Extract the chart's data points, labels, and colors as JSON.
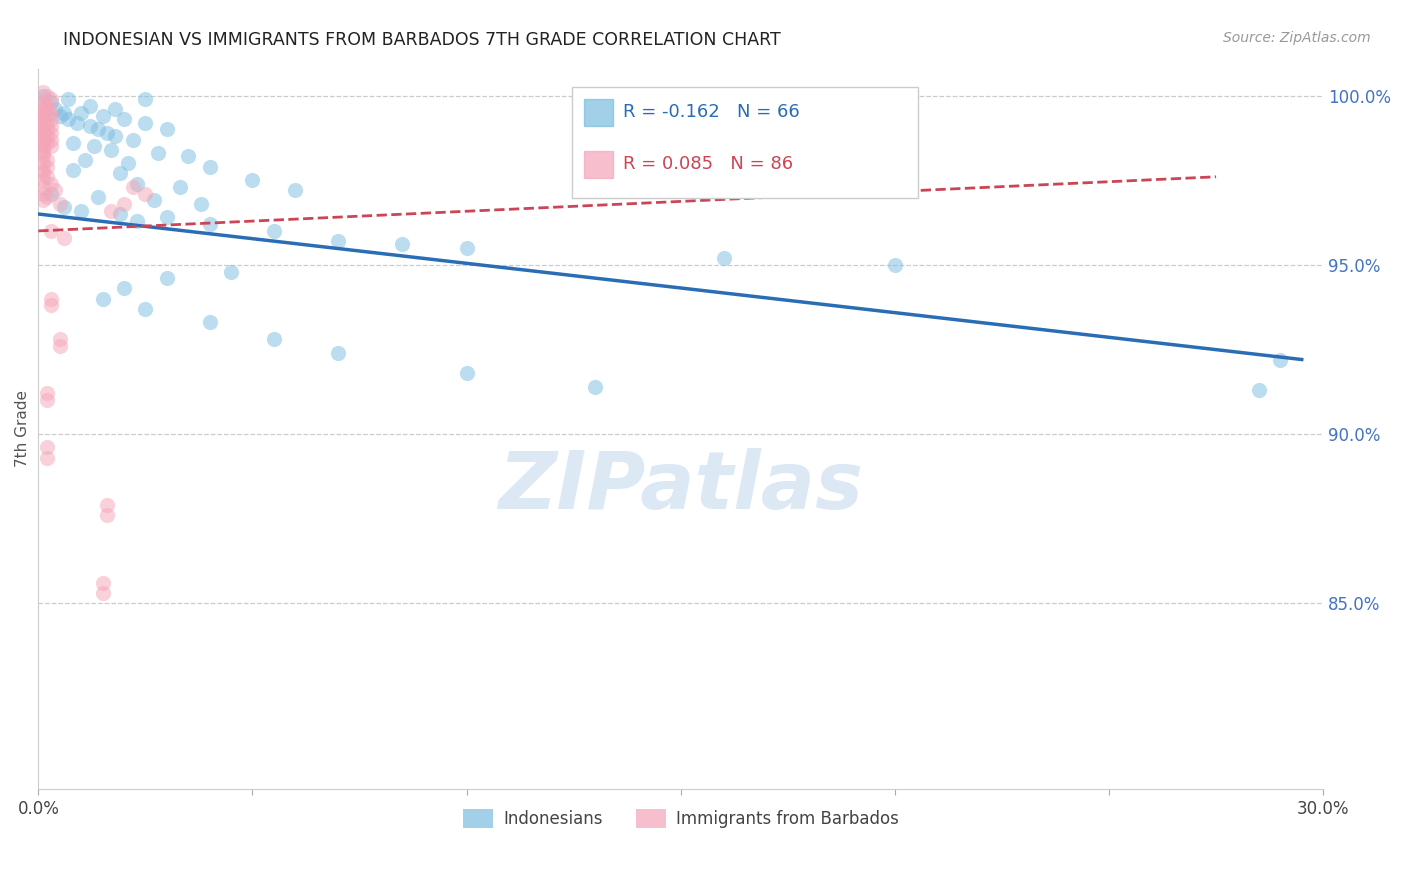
{
  "title": "INDONESIAN VS IMMIGRANTS FROM BARBADOS 7TH GRADE CORRELATION CHART",
  "source": "Source: ZipAtlas.com",
  "ylabel": "7th Grade",
  "xmin": 0.0,
  "xmax": 0.3,
  "ymin": 0.795,
  "ymax": 1.008,
  "yticks": [
    0.85,
    0.9,
    0.95,
    1.0
  ],
  "ytick_labels": [
    "85.0%",
    "90.0%",
    "95.0%",
    "100.0%"
  ],
  "xticks": [
    0.0,
    0.05,
    0.1,
    0.15,
    0.2,
    0.25,
    0.3
  ],
  "xtick_labels": [
    "0.0%",
    "",
    "",
    "",
    "",
    "",
    "30.0%"
  ],
  "legend_blue_r": "-0.162",
  "legend_blue_n": "66",
  "legend_pink_r": "0.085",
  "legend_pink_n": "86",
  "blue_color": "#7bbde0",
  "pink_color": "#f4a5b8",
  "trend_blue_color": "#2a6db5",
  "trend_pink_color": "#cc4455",
  "watermark": "ZIPatlas",
  "watermark_color": "#dce9f5",
  "blue_scatter": [
    [
      0.001,
      1.0
    ],
    [
      0.007,
      0.999
    ],
    [
      0.025,
      0.999
    ],
    [
      0.003,
      0.998
    ],
    [
      0.012,
      0.997
    ],
    [
      0.004,
      0.996
    ],
    [
      0.018,
      0.996
    ],
    [
      0.006,
      0.995
    ],
    [
      0.01,
      0.995
    ],
    [
      0.005,
      0.994
    ],
    [
      0.015,
      0.994
    ],
    [
      0.007,
      0.993
    ],
    [
      0.02,
      0.993
    ],
    [
      0.009,
      0.992
    ],
    [
      0.025,
      0.992
    ],
    [
      0.012,
      0.991
    ],
    [
      0.014,
      0.99
    ],
    [
      0.03,
      0.99
    ],
    [
      0.016,
      0.989
    ],
    [
      0.018,
      0.988
    ],
    [
      0.022,
      0.987
    ],
    [
      0.008,
      0.986
    ],
    [
      0.013,
      0.985
    ],
    [
      0.017,
      0.984
    ],
    [
      0.028,
      0.983
    ],
    [
      0.035,
      0.982
    ],
    [
      0.011,
      0.981
    ],
    [
      0.021,
      0.98
    ],
    [
      0.04,
      0.979
    ],
    [
      0.008,
      0.978
    ],
    [
      0.019,
      0.977
    ],
    [
      0.05,
      0.975
    ],
    [
      0.023,
      0.974
    ],
    [
      0.033,
      0.973
    ],
    [
      0.06,
      0.972
    ],
    [
      0.003,
      0.971
    ],
    [
      0.014,
      0.97
    ],
    [
      0.027,
      0.969
    ],
    [
      0.038,
      0.968
    ],
    [
      0.006,
      0.967
    ],
    [
      0.01,
      0.966
    ],
    [
      0.019,
      0.965
    ],
    [
      0.03,
      0.964
    ],
    [
      0.023,
      0.963
    ],
    [
      0.04,
      0.962
    ],
    [
      0.055,
      0.96
    ],
    [
      0.07,
      0.957
    ],
    [
      0.085,
      0.956
    ],
    [
      0.1,
      0.955
    ],
    [
      0.16,
      0.952
    ],
    [
      0.2,
      0.95
    ],
    [
      0.045,
      0.948
    ],
    [
      0.03,
      0.946
    ],
    [
      0.02,
      0.943
    ],
    [
      0.015,
      0.94
    ],
    [
      0.025,
      0.937
    ],
    [
      0.04,
      0.933
    ],
    [
      0.055,
      0.928
    ],
    [
      0.07,
      0.924
    ],
    [
      0.1,
      0.918
    ],
    [
      0.13,
      0.914
    ],
    [
      0.29,
      0.922
    ],
    [
      0.285,
      0.913
    ]
  ],
  "pink_scatter": [
    [
      0.001,
      1.001
    ],
    [
      0.002,
      1.0
    ],
    [
      0.003,
      0.999
    ],
    [
      0.001,
      0.998
    ],
    [
      0.002,
      0.997
    ],
    [
      0.001,
      0.997
    ],
    [
      0.002,
      0.996
    ],
    [
      0.001,
      0.996
    ],
    [
      0.003,
      0.995
    ],
    [
      0.001,
      0.995
    ],
    [
      0.002,
      0.994
    ],
    [
      0.001,
      0.994
    ],
    [
      0.003,
      0.993
    ],
    [
      0.001,
      0.993
    ],
    [
      0.002,
      0.992
    ],
    [
      0.001,
      0.992
    ],
    [
      0.003,
      0.991
    ],
    [
      0.001,
      0.991
    ],
    [
      0.002,
      0.99
    ],
    [
      0.001,
      0.99
    ],
    [
      0.003,
      0.989
    ],
    [
      0.001,
      0.989
    ],
    [
      0.002,
      0.988
    ],
    [
      0.001,
      0.988
    ],
    [
      0.003,
      0.987
    ],
    [
      0.001,
      0.987
    ],
    [
      0.002,
      0.986
    ],
    [
      0.001,
      0.986
    ],
    [
      0.003,
      0.985
    ],
    [
      0.001,
      0.985
    ],
    [
      0.001,
      0.984
    ],
    [
      0.001,
      0.983
    ],
    [
      0.001,
      0.982
    ],
    [
      0.002,
      0.981
    ],
    [
      0.001,
      0.98
    ],
    [
      0.002,
      0.979
    ],
    [
      0.001,
      0.978
    ],
    [
      0.001,
      0.977
    ],
    [
      0.002,
      0.976
    ],
    [
      0.001,
      0.975
    ],
    [
      0.003,
      0.974
    ],
    [
      0.001,
      0.973
    ],
    [
      0.004,
      0.972
    ],
    [
      0.001,
      0.971
    ],
    [
      0.002,
      0.97
    ],
    [
      0.001,
      0.969
    ],
    [
      0.005,
      0.968
    ],
    [
      0.022,
      0.973
    ],
    [
      0.025,
      0.971
    ],
    [
      0.02,
      0.968
    ],
    [
      0.017,
      0.966
    ],
    [
      0.003,
      0.96
    ],
    [
      0.006,
      0.958
    ],
    [
      0.003,
      0.94
    ],
    [
      0.003,
      0.938
    ],
    [
      0.005,
      0.928
    ],
    [
      0.005,
      0.926
    ],
    [
      0.002,
      0.912
    ],
    [
      0.002,
      0.91
    ],
    [
      0.002,
      0.896
    ],
    [
      0.002,
      0.893
    ],
    [
      0.016,
      0.879
    ],
    [
      0.016,
      0.876
    ],
    [
      0.015,
      0.856
    ],
    [
      0.015,
      0.853
    ]
  ],
  "blue_trend_x": [
    0.0,
    0.295
  ],
  "blue_trend_y": [
    0.965,
    0.922
  ],
  "pink_trend_x": [
    0.0,
    0.275
  ],
  "pink_trend_y": [
    0.96,
    0.976
  ]
}
